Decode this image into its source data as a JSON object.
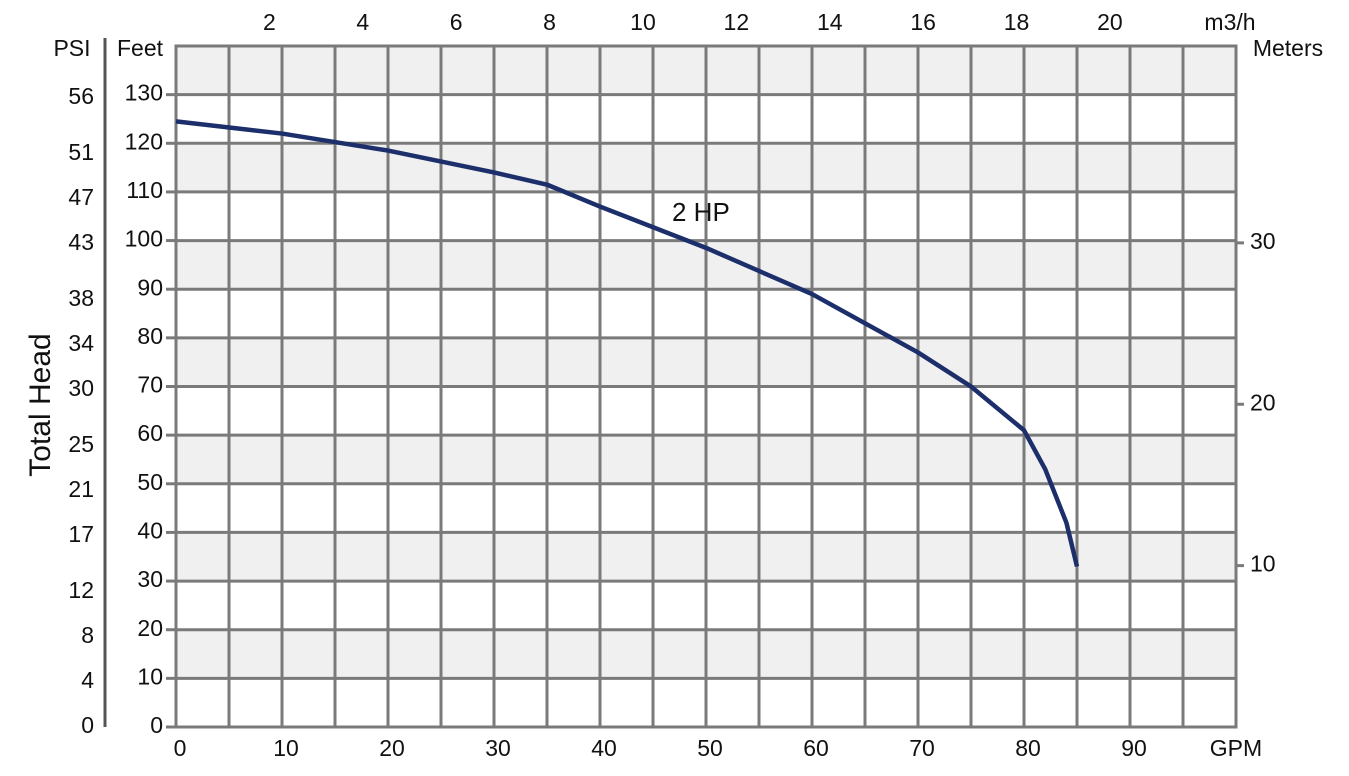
{
  "chart_data": {
    "type": "line",
    "y_label": "Total Head",
    "psi_label": "PSI",
    "feet_label": "Feet",
    "y2_label": "Meters",
    "x_label": "GPM",
    "x2_label": "m3/h",
    "annotation": "2 HP",
    "xlim": [
      0,
      100
    ],
    "xticks": [
      0,
      10,
      20,
      30,
      40,
      50,
      60,
      70,
      80,
      90
    ],
    "xminor": [
      5,
      15,
      25,
      35,
      45,
      55,
      65,
      75,
      85,
      95
    ],
    "x2lim": [
      0,
      22.7
    ],
    "x2ticks": [
      2,
      4,
      6,
      8,
      10,
      12,
      14,
      16,
      18,
      20
    ],
    "ylim": [
      0,
      140
    ],
    "yticks": [
      0,
      10,
      20,
      30,
      40,
      50,
      60,
      70,
      80,
      90,
      100,
      110,
      120,
      130
    ],
    "psi_lim": [
      0,
      60.6
    ],
    "psi_ticks": [
      0,
      4,
      8,
      12,
      17,
      21,
      25,
      30,
      34,
      38,
      43,
      47,
      51,
      56
    ],
    "y2lim": [
      0,
      42.2
    ],
    "y2ticks": [
      10,
      20,
      30
    ],
    "grid": true,
    "series": [
      {
        "color": "#1c2f6b",
        "x": [
          0,
          10,
          20,
          30,
          35,
          40,
          50,
          60,
          70,
          75,
          80,
          82,
          84,
          85
        ],
        "values": [
          124.5,
          122,
          118.5,
          114,
          111.5,
          107,
          98.5,
          89,
          77,
          70,
          61,
          53,
          42,
          33
        ]
      }
    ]
  }
}
